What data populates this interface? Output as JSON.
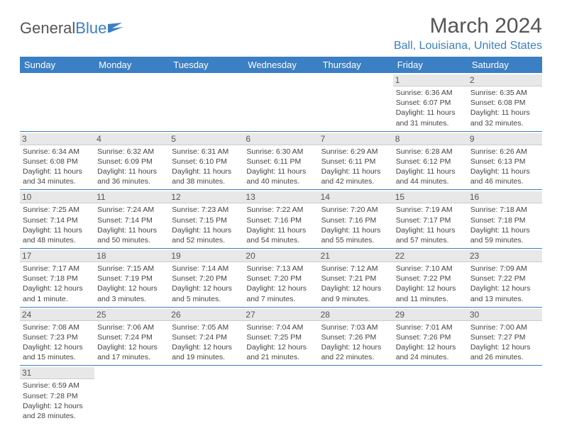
{
  "logo": {
    "text1": "General",
    "text2": "Blue"
  },
  "title": "March 2024",
  "location": "Ball, Louisiana, United States",
  "colors": {
    "accent": "#3b7fc4",
    "text": "#555555",
    "daybg": "#e8e8e8",
    "background": "#ffffff"
  },
  "daynames": [
    "Sunday",
    "Monday",
    "Tuesday",
    "Wednesday",
    "Thursday",
    "Friday",
    "Saturday"
  ],
  "weeks": [
    [
      null,
      null,
      null,
      null,
      null,
      {
        "n": "1",
        "sunrise": "6:36 AM",
        "sunset": "6:07 PM",
        "daylight": "11 hours and 31 minutes."
      },
      {
        "n": "2",
        "sunrise": "6:35 AM",
        "sunset": "6:08 PM",
        "daylight": "11 hours and 32 minutes."
      }
    ],
    [
      {
        "n": "3",
        "sunrise": "6:34 AM",
        "sunset": "6:08 PM",
        "daylight": "11 hours and 34 minutes."
      },
      {
        "n": "4",
        "sunrise": "6:32 AM",
        "sunset": "6:09 PM",
        "daylight": "11 hours and 36 minutes."
      },
      {
        "n": "5",
        "sunrise": "6:31 AM",
        "sunset": "6:10 PM",
        "daylight": "11 hours and 38 minutes."
      },
      {
        "n": "6",
        "sunrise": "6:30 AM",
        "sunset": "6:11 PM",
        "daylight": "11 hours and 40 minutes."
      },
      {
        "n": "7",
        "sunrise": "6:29 AM",
        "sunset": "6:11 PM",
        "daylight": "11 hours and 42 minutes."
      },
      {
        "n": "8",
        "sunrise": "6:28 AM",
        "sunset": "6:12 PM",
        "daylight": "11 hours and 44 minutes."
      },
      {
        "n": "9",
        "sunrise": "6:26 AM",
        "sunset": "6:13 PM",
        "daylight": "11 hours and 46 minutes."
      }
    ],
    [
      {
        "n": "10",
        "sunrise": "7:25 AM",
        "sunset": "7:14 PM",
        "daylight": "11 hours and 48 minutes."
      },
      {
        "n": "11",
        "sunrise": "7:24 AM",
        "sunset": "7:14 PM",
        "daylight": "11 hours and 50 minutes."
      },
      {
        "n": "12",
        "sunrise": "7:23 AM",
        "sunset": "7:15 PM",
        "daylight": "11 hours and 52 minutes."
      },
      {
        "n": "13",
        "sunrise": "7:22 AM",
        "sunset": "7:16 PM",
        "daylight": "11 hours and 54 minutes."
      },
      {
        "n": "14",
        "sunrise": "7:20 AM",
        "sunset": "7:16 PM",
        "daylight": "11 hours and 55 minutes."
      },
      {
        "n": "15",
        "sunrise": "7:19 AM",
        "sunset": "7:17 PM",
        "daylight": "11 hours and 57 minutes."
      },
      {
        "n": "16",
        "sunrise": "7:18 AM",
        "sunset": "7:18 PM",
        "daylight": "11 hours and 59 minutes."
      }
    ],
    [
      {
        "n": "17",
        "sunrise": "7:17 AM",
        "sunset": "7:18 PM",
        "daylight": "12 hours and 1 minute."
      },
      {
        "n": "18",
        "sunrise": "7:15 AM",
        "sunset": "7:19 PM",
        "daylight": "12 hours and 3 minutes."
      },
      {
        "n": "19",
        "sunrise": "7:14 AM",
        "sunset": "7:20 PM",
        "daylight": "12 hours and 5 minutes."
      },
      {
        "n": "20",
        "sunrise": "7:13 AM",
        "sunset": "7:20 PM",
        "daylight": "12 hours and 7 minutes."
      },
      {
        "n": "21",
        "sunrise": "7:12 AM",
        "sunset": "7:21 PM",
        "daylight": "12 hours and 9 minutes."
      },
      {
        "n": "22",
        "sunrise": "7:10 AM",
        "sunset": "7:22 PM",
        "daylight": "12 hours and 11 minutes."
      },
      {
        "n": "23",
        "sunrise": "7:09 AM",
        "sunset": "7:22 PM",
        "daylight": "12 hours and 13 minutes."
      }
    ],
    [
      {
        "n": "24",
        "sunrise": "7:08 AM",
        "sunset": "7:23 PM",
        "daylight": "12 hours and 15 minutes."
      },
      {
        "n": "25",
        "sunrise": "7:06 AM",
        "sunset": "7:24 PM",
        "daylight": "12 hours and 17 minutes."
      },
      {
        "n": "26",
        "sunrise": "7:05 AM",
        "sunset": "7:24 PM",
        "daylight": "12 hours and 19 minutes."
      },
      {
        "n": "27",
        "sunrise": "7:04 AM",
        "sunset": "7:25 PM",
        "daylight": "12 hours and 21 minutes."
      },
      {
        "n": "28",
        "sunrise": "7:03 AM",
        "sunset": "7:26 PM",
        "daylight": "12 hours and 22 minutes."
      },
      {
        "n": "29",
        "sunrise": "7:01 AM",
        "sunset": "7:26 PM",
        "daylight": "12 hours and 24 minutes."
      },
      {
        "n": "30",
        "sunrise": "7:00 AM",
        "sunset": "7:27 PM",
        "daylight": "12 hours and 26 minutes."
      }
    ],
    [
      {
        "n": "31",
        "sunrise": "6:59 AM",
        "sunset": "7:28 PM",
        "daylight": "12 hours and 28 minutes."
      },
      null,
      null,
      null,
      null,
      null,
      null
    ]
  ],
  "labels": {
    "sunrise": "Sunrise: ",
    "sunset": "Sunset: ",
    "daylight": "Daylight: "
  }
}
